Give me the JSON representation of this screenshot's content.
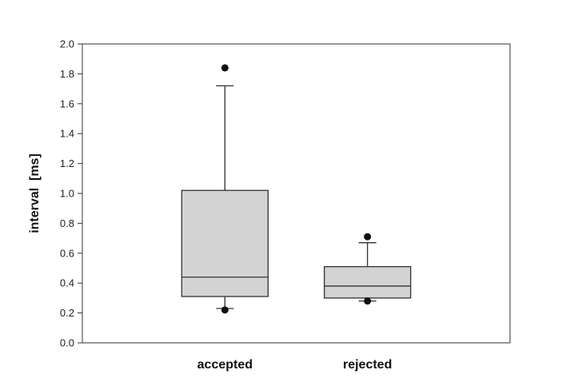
{
  "chart_data": {
    "type": "box",
    "title": "",
    "xlabel": "",
    "ylabel": "interval  [ms]",
    "ylim": [
      0.0,
      2.0
    ],
    "yticks": [
      "0.0",
      "0.2",
      "0.4",
      "0.6",
      "0.8",
      "1.0",
      "1.2",
      "1.4",
      "1.6",
      "1.8",
      "2.0"
    ],
    "grid": false,
    "categories": [
      "accepted",
      "rejected"
    ],
    "boxes": [
      {
        "category": "accepted",
        "whisker_low": 0.23,
        "q1": 0.31,
        "median": 0.44,
        "q3": 1.02,
        "whisker_high": 1.72,
        "outliers": [
          0.22,
          1.84
        ]
      },
      {
        "category": "rejected",
        "whisker_low": 0.28,
        "q1": 0.3,
        "median": 0.38,
        "q3": 0.51,
        "whisker_high": 0.67,
        "outliers": [
          0.28,
          0.71
        ]
      }
    ],
    "colors": {
      "box_fill": "#d3d3d3",
      "line": "#333333",
      "outlier": "#111111"
    }
  }
}
